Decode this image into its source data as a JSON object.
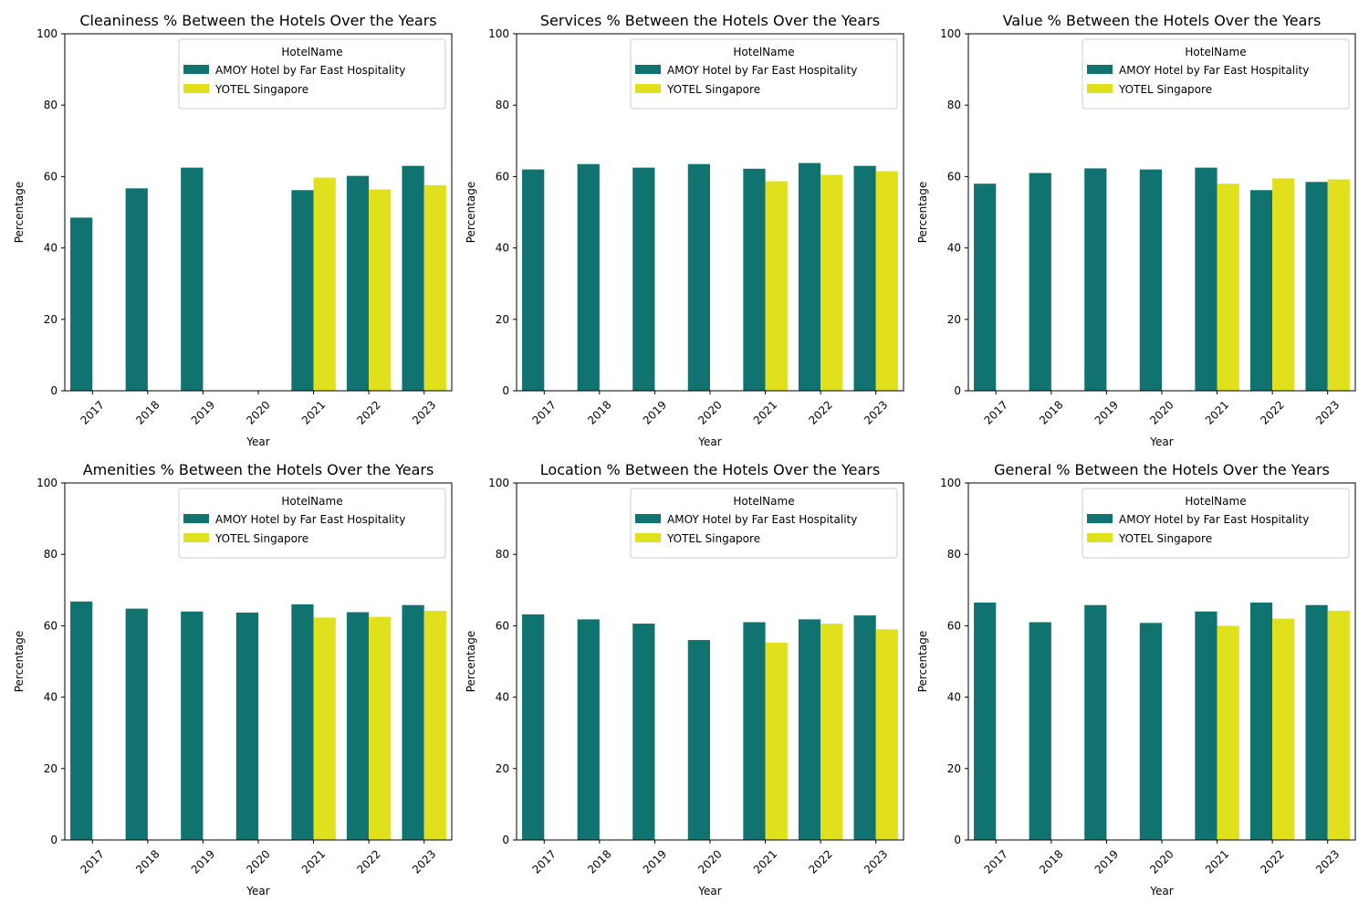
{
  "colors": {
    "amoy": "#107370",
    "yotel": "#e0e01c"
  },
  "chart_data": [
    {
      "type": "bar",
      "title": "Cleaniness % Between the Hotels Over the Years",
      "xlabel": "Year",
      "ylabel": "Percentage",
      "ylim": [
        0,
        100
      ],
      "yticks": [
        "0",
        "20",
        "40",
        "60",
        "80",
        "100"
      ],
      "categories": [
        "2017",
        "2018",
        "2019",
        "2020",
        "2021",
        "2022",
        "2023"
      ],
      "legend": {
        "title": "HotelName",
        "position": "top-right"
      },
      "series": [
        {
          "name": "AMOY Hotel by Far East Hospitality",
          "values": [
            48.5,
            56.7,
            62.5,
            null,
            56.2,
            60.2,
            63.0
          ]
        },
        {
          "name": "YOTEL Singapore",
          "values": [
            null,
            null,
            null,
            null,
            59.7,
            56.4,
            57.6
          ]
        }
      ]
    },
    {
      "type": "bar",
      "title": "Services % Between the Hotels Over the Years",
      "xlabel": "Year",
      "ylabel": "Percentage",
      "ylim": [
        0,
        100
      ],
      "yticks": [
        "0",
        "20",
        "40",
        "60",
        "80",
        "100"
      ],
      "categories": [
        "2017",
        "2018",
        "2019",
        "2020",
        "2021",
        "2022",
        "2023"
      ],
      "legend": {
        "title": "HotelName",
        "position": "top-right"
      },
      "series": [
        {
          "name": "AMOY Hotel by Far East Hospitality",
          "values": [
            62.0,
            63.5,
            62.5,
            63.5,
            62.2,
            63.8,
            63.0
          ]
        },
        {
          "name": "YOTEL Singapore",
          "values": [
            null,
            null,
            null,
            null,
            58.7,
            60.5,
            61.5
          ]
        }
      ]
    },
    {
      "type": "bar",
      "title": "Value % Between the Hotels Over the Years",
      "xlabel": "Year",
      "ylabel": "Percentage",
      "ylim": [
        0,
        100
      ],
      "yticks": [
        "0",
        "20",
        "40",
        "60",
        "80",
        "100"
      ],
      "categories": [
        "2017",
        "2018",
        "2019",
        "2020",
        "2021",
        "2022",
        "2023"
      ],
      "legend": {
        "title": "HotelName",
        "position": "top-right"
      },
      "series": [
        {
          "name": "AMOY Hotel by Far East Hospitality",
          "values": [
            58.0,
            61.0,
            62.3,
            62.0,
            62.5,
            56.2,
            58.5
          ]
        },
        {
          "name": "YOTEL Singapore",
          "values": [
            null,
            null,
            null,
            null,
            58.0,
            59.5,
            59.2
          ]
        }
      ]
    },
    {
      "type": "bar",
      "title": "Amenities % Between the Hotels Over the Years",
      "xlabel": "Year",
      "ylabel": "Percentage",
      "ylim": [
        0,
        100
      ],
      "yticks": [
        "0",
        "20",
        "40",
        "60",
        "80",
        "100"
      ],
      "categories": [
        "2017",
        "2018",
        "2019",
        "2020",
        "2021",
        "2022",
        "2023"
      ],
      "legend": {
        "title": "HotelName",
        "position": "top-right"
      },
      "series": [
        {
          "name": "AMOY Hotel by Far East Hospitality",
          "values": [
            66.8,
            64.8,
            64.0,
            63.7,
            66.0,
            63.8,
            65.8
          ]
        },
        {
          "name": "YOTEL Singapore",
          "values": [
            null,
            null,
            null,
            null,
            62.3,
            62.5,
            64.2
          ]
        }
      ]
    },
    {
      "type": "bar",
      "title": "Location % Between the Hotels Over the Years",
      "xlabel": "Year",
      "ylabel": "Percentage",
      "ylim": [
        0,
        100
      ],
      "yticks": [
        "0",
        "20",
        "40",
        "60",
        "80",
        "100"
      ],
      "categories": [
        "2017",
        "2018",
        "2019",
        "2020",
        "2021",
        "2022",
        "2023"
      ],
      "legend": {
        "title": "HotelName",
        "position": "top-right"
      },
      "series": [
        {
          "name": "AMOY Hotel by Far East Hospitality",
          "values": [
            63.2,
            61.8,
            60.6,
            56.0,
            61.0,
            61.8,
            62.9
          ]
        },
        {
          "name": "YOTEL Singapore",
          "values": [
            null,
            null,
            null,
            null,
            55.3,
            60.6,
            59.0
          ]
        }
      ]
    },
    {
      "type": "bar",
      "title": "General % Between the Hotels Over the Years",
      "xlabel": "Year",
      "ylabel": "Percentage",
      "ylim": [
        0,
        100
      ],
      "yticks": [
        "0",
        "20",
        "40",
        "60",
        "80",
        "100"
      ],
      "categories": [
        "2017",
        "2018",
        "2019",
        "2020",
        "2021",
        "2022",
        "2023"
      ],
      "legend": {
        "title": "HotelName",
        "position": "top-right"
      },
      "series": [
        {
          "name": "AMOY Hotel by Far East Hospitality",
          "values": [
            66.5,
            61.0,
            65.8,
            60.8,
            64.0,
            66.5,
            65.8
          ]
        },
        {
          "name": "YOTEL Singapore",
          "values": [
            null,
            null,
            null,
            null,
            60.0,
            62.0,
            64.2
          ]
        }
      ]
    }
  ]
}
